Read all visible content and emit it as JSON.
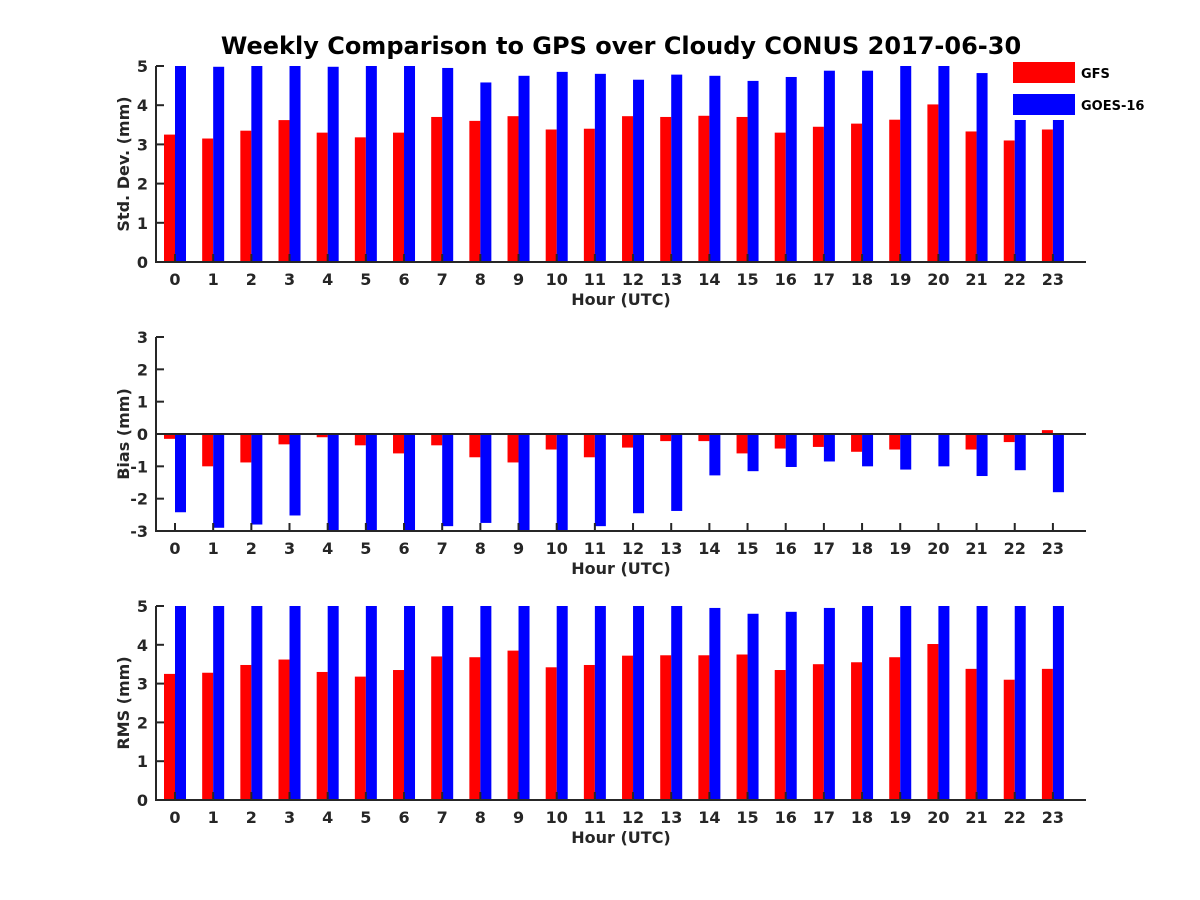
{
  "title": "Weekly Comparison to GPS over Cloudy CONUS 2017-06-30",
  "colors": {
    "GFS": "#ff0000",
    "GOES-16": "#0000ff"
  },
  "legend": {
    "position": "top-right",
    "entries": [
      "GFS",
      "GOES-16"
    ]
  },
  "chart_data": [
    {
      "type": "bar",
      "ylabel": "Std. Dev. (mm)",
      "xlabel": "Hour (UTC)",
      "ylim": [
        0,
        5
      ],
      "yticks": [
        "0",
        "1",
        "2",
        "3",
        "4",
        "5"
      ],
      "categories": [
        "0",
        "1",
        "2",
        "3",
        "4",
        "5",
        "6",
        "7",
        "8",
        "9",
        "10",
        "11",
        "12",
        "13",
        "14",
        "15",
        "16",
        "17",
        "18",
        "19",
        "20",
        "21",
        "22",
        "23"
      ],
      "series": [
        {
          "name": "GFS",
          "values": [
            3.25,
            3.15,
            3.35,
            3.62,
            3.3,
            3.18,
            3.3,
            3.7,
            3.6,
            3.72,
            3.38,
            3.4,
            3.72,
            3.7,
            3.73,
            3.7,
            3.3,
            3.45,
            3.53,
            3.63,
            4.02,
            3.33,
            3.1,
            3.38
          ]
        },
        {
          "name": "GOES-16",
          "values": [
            5.0,
            4.98,
            5.0,
            5.0,
            4.98,
            5.0,
            5.0,
            4.95,
            4.58,
            4.75,
            4.85,
            4.8,
            4.65,
            4.78,
            4.75,
            4.62,
            4.72,
            4.88,
            4.88,
            5.0,
            5.0,
            4.82,
            4.92,
            4.62
          ]
        }
      ]
    },
    {
      "type": "bar",
      "ylabel": "Bias (mm)",
      "xlabel": "Hour (UTC)",
      "ylim": [
        -3,
        3
      ],
      "yticks": [
        "-3",
        "-2",
        "-1",
        "0",
        "1",
        "2",
        "3"
      ],
      "categories": [
        "0",
        "1",
        "2",
        "3",
        "4",
        "5",
        "6",
        "7",
        "8",
        "9",
        "10",
        "11",
        "12",
        "13",
        "14",
        "15",
        "16",
        "17",
        "18",
        "19",
        "20",
        "21",
        "22",
        "23"
      ],
      "series": [
        {
          "name": "GFS",
          "values": [
            -0.15,
            -1.0,
            -0.88,
            -0.32,
            -0.1,
            -0.35,
            -0.6,
            -0.35,
            -0.72,
            -0.88,
            -0.48,
            -0.72,
            -0.42,
            -0.22,
            -0.22,
            -0.6,
            -0.45,
            -0.4,
            -0.55,
            -0.48,
            0.02,
            -0.48,
            -0.25,
            0.12
          ]
        },
        {
          "name": "GOES-16",
          "values": [
            -2.42,
            -2.9,
            -2.8,
            -2.52,
            -3.0,
            -3.0,
            -3.0,
            -2.85,
            -2.75,
            -3.0,
            -3.0,
            -2.85,
            -2.45,
            -2.38,
            -1.28,
            -1.15,
            -1.02,
            -0.85,
            -1.0,
            -1.1,
            -1.0,
            -1.3,
            -1.12,
            -1.8
          ]
        }
      ]
    },
    {
      "type": "bar",
      "ylabel": "RMS (mm)",
      "xlabel": "Hour (UTC)",
      "ylim": [
        0,
        5
      ],
      "yticks": [
        "0",
        "1",
        "2",
        "3",
        "4",
        "5"
      ],
      "categories": [
        "0",
        "1",
        "2",
        "3",
        "4",
        "5",
        "6",
        "7",
        "8",
        "9",
        "10",
        "11",
        "12",
        "13",
        "14",
        "15",
        "16",
        "17",
        "18",
        "19",
        "20",
        "21",
        "22",
        "23"
      ],
      "series": [
        {
          "name": "GFS",
          "values": [
            3.25,
            3.28,
            3.48,
            3.62,
            3.3,
            3.18,
            3.35,
            3.7,
            3.68,
            3.85,
            3.42,
            3.48,
            3.72,
            3.73,
            3.73,
            3.75,
            3.35,
            3.5,
            3.55,
            3.68,
            4.02,
            3.38,
            3.1,
            3.38
          ]
        },
        {
          "name": "GOES-16",
          "values": [
            5.0,
            5.0,
            5.0,
            5.0,
            5.0,
            5.0,
            5.0,
            5.0,
            5.0,
            5.0,
            5.0,
            5.0,
            5.0,
            5.0,
            4.95,
            4.8,
            4.85,
            4.95,
            5.0,
            5.0,
            5.0,
            5.0,
            5.0,
            5.0
          ]
        }
      ]
    }
  ]
}
